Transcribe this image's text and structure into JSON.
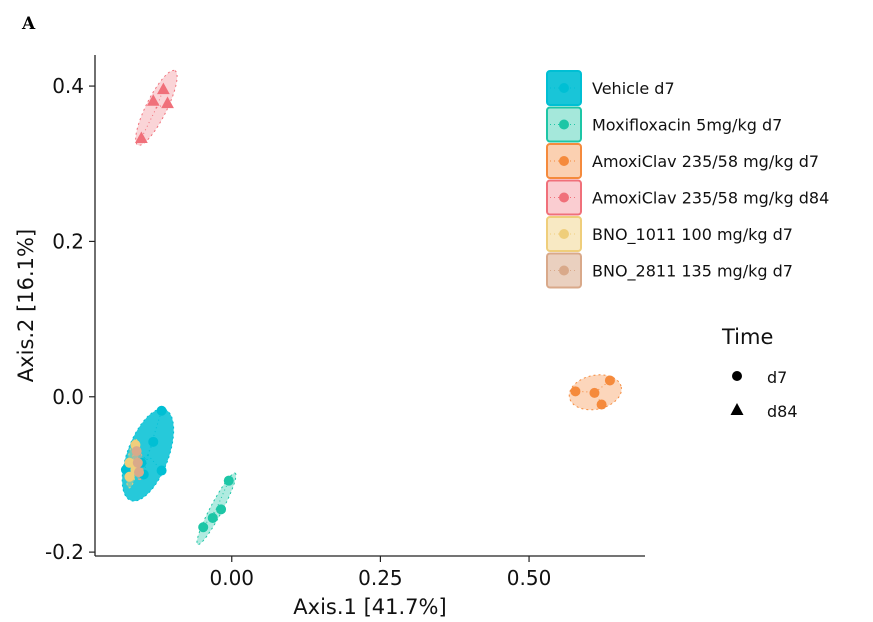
{
  "panel_label": "A",
  "chart_data": {
    "type": "scatter",
    "xlabel": "Axis.1   [41.7%]",
    "ylabel": "Axis.2   [16.1%]",
    "xlim": [
      -0.23,
      0.695
    ],
    "ylim": [
      -0.205,
      0.44
    ],
    "x_ticks": [
      0.0,
      0.25,
      0.5
    ],
    "x_tick_labels": [
      "0.00",
      "0.25",
      "0.50"
    ],
    "y_ticks": [
      -0.2,
      0.0,
      0.2,
      0.4
    ],
    "y_tick_labels": [
      "-0.2",
      "0.0",
      "0.2",
      "0.4"
    ],
    "grid": false,
    "legend_position": "right",
    "shape_legend": {
      "title": "Time",
      "entries": [
        {
          "label": "d7",
          "shape": "circle"
        },
        {
          "label": "d84",
          "shape": "triangle"
        }
      ]
    },
    "series": [
      {
        "name": "Vehicle d7",
        "color": "#00BFD4",
        "ellipse_opacity": 0.85,
        "time": "d7",
        "points": [
          [
            -0.118,
            -0.018
          ],
          [
            -0.132,
            -0.058
          ],
          [
            -0.118,
            -0.095
          ],
          [
            -0.148,
            -0.1
          ],
          [
            -0.152,
            -0.085
          ],
          [
            -0.178,
            -0.094
          ]
        ]
      },
      {
        "name": "Moxifloxacin 5mg/kg d7",
        "color": "#1DC6A6",
        "ellipse_opacity": 0.35,
        "time": "d7",
        "points": [
          [
            -0.005,
            -0.108
          ],
          [
            -0.018,
            -0.145
          ],
          [
            -0.032,
            -0.156
          ],
          [
            -0.048,
            -0.168
          ]
        ]
      },
      {
        "name": "AmoxiClav  235/58 mg/kg d7",
        "color": "#F58A3C",
        "ellipse_opacity": 0.35,
        "time": "d7",
        "points": [
          [
            0.578,
            0.007
          ],
          [
            0.61,
            0.005
          ],
          [
            0.636,
            0.021
          ],
          [
            0.622,
            -0.01
          ]
        ]
      },
      {
        "name": "AmoxiClav  235/58 mg/kg d84",
        "color": "#F0707A",
        "ellipse_opacity": 0.3,
        "time": "d84",
        "points": [
          [
            -0.115,
            0.396
          ],
          [
            -0.132,
            0.381
          ],
          [
            -0.108,
            0.378
          ],
          [
            -0.152,
            0.333
          ]
        ]
      },
      {
        "name": "BNO_1011 100 mg/kg d7",
        "color": "#EFCE7B",
        "ellipse_opacity": 0.4,
        "time": "d7",
        "points": [
          [
            -0.162,
            -0.062
          ],
          [
            -0.172,
            -0.085
          ],
          [
            -0.172,
            -0.103
          ],
          [
            -0.162,
            -0.094
          ]
        ]
      },
      {
        "name": "BNO_2811 135 mg/kg d7",
        "color": "#D9A98A",
        "ellipse_opacity": 0.5,
        "time": "d7",
        "points": [
          [
            -0.16,
            -0.07
          ],
          [
            -0.158,
            -0.085
          ],
          [
            -0.156,
            -0.097
          ]
        ]
      }
    ]
  }
}
